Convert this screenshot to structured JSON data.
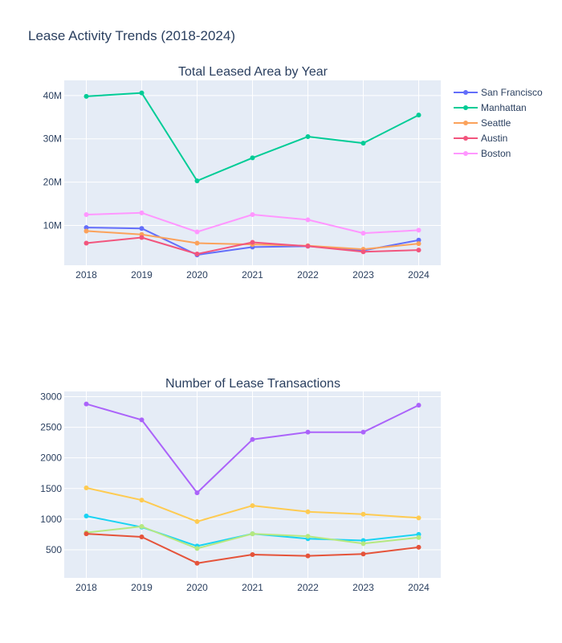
{
  "figure": {
    "title": "Lease Activity Trends (2018-2024)"
  },
  "chart_data": [
    {
      "type": "line",
      "title": "Total Leased Area by Year",
      "xlabel": "",
      "ylabel": "",
      "x": [
        2018,
        2019,
        2020,
        2021,
        2022,
        2023,
        2024
      ],
      "ylim": [
        0.8,
        43.5
      ],
      "yunit": "M",
      "yticks": [
        10,
        20,
        30,
        40
      ],
      "ytick_labels": [
        "10M",
        "20M",
        "30M",
        "40M"
      ],
      "grid": true,
      "legend": "top-right",
      "series": [
        {
          "name": "San Francisco",
          "color": "#636efa",
          "values": [
            9.5,
            9.3,
            3.2,
            5.0,
            5.2,
            4.2,
            6.6
          ]
        },
        {
          "name": "Manhattan",
          "color": "#00cc96",
          "values": [
            39.8,
            40.6,
            20.3,
            25.6,
            30.5,
            29.0,
            35.5
          ]
        },
        {
          "name": "Seattle",
          "color": "#ef553b",
          "values": [
            8.7,
            7.9,
            5.9,
            5.6,
            5.3,
            4.5,
            5.8
          ],
          "color_override": "#fba25b"
        },
        {
          "name": "Austin",
          "color": "#ff6692",
          "values": [
            5.9,
            7.2,
            3.4,
            6.1,
            5.2,
            3.9,
            4.3
          ],
          "color_override": "#f2557d"
        },
        {
          "name": "Boston",
          "color": "#ff97ff",
          "values": [
            12.5,
            12.9,
            8.5,
            12.5,
            11.3,
            8.2,
            8.9
          ]
        }
      ]
    },
    {
      "type": "line",
      "title": "Number of Lease Transactions",
      "xlabel": "",
      "ylabel": "",
      "x": [
        2018,
        2019,
        2020,
        2021,
        2022,
        2023,
        2024
      ],
      "ylim": [
        40,
        3085
      ],
      "yticks": [
        500,
        1000,
        1500,
        2000,
        2500,
        3000
      ],
      "ytick_labels": [
        "500",
        "1000",
        "1500",
        "2000",
        "2500",
        "3000"
      ],
      "grid": true,
      "series": [
        {
          "color": "#ab63fa",
          "values": [
            2880,
            2620,
            1430,
            2300,
            2420,
            2420,
            2860
          ]
        },
        {
          "color": "#fecb52",
          "values": [
            1510,
            1310,
            960,
            1220,
            1120,
            1080,
            1020
          ]
        },
        {
          "color": "#19d3f3",
          "values": [
            1050,
            870,
            560,
            760,
            680,
            650,
            750
          ]
        },
        {
          "color": "#b6e880",
          "values": [
            780,
            880,
            520,
            760,
            720,
            600,
            700
          ]
        },
        {
          "color": "#e5533a",
          "values": [
            760,
            710,
            280,
            420,
            400,
            430,
            540
          ]
        }
      ]
    }
  ],
  "colors": {
    "plot_bg": "#e5ecf6",
    "grid": "#ffffff",
    "text": "#2a3f5f"
  }
}
